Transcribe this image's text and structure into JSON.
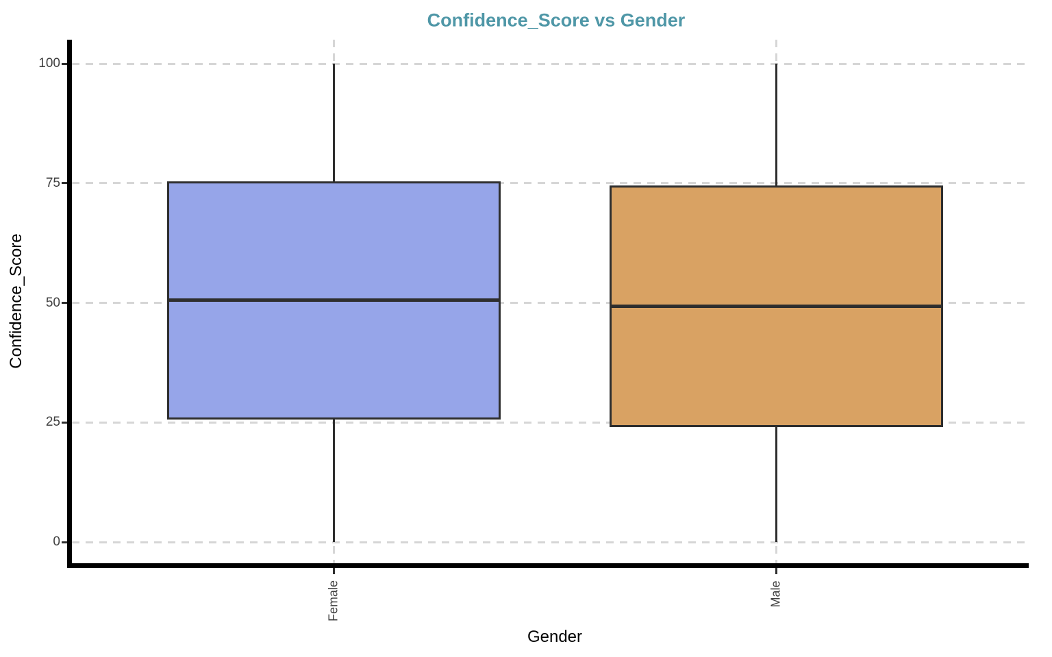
{
  "chart_data": {
    "type": "boxplot",
    "title": "Confidence_Score vs Gender",
    "xlabel": "Gender",
    "ylabel": "Confidence_Score",
    "categories": [
      "Female",
      "Male"
    ],
    "y_ticks": [
      0,
      25,
      50,
      75,
      100
    ],
    "ylim": [
      0,
      100
    ],
    "grid": "dashed light-gray horizontal lines at ticks and vertical lines at category centers",
    "legend": "none",
    "series": [
      {
        "name": "Female",
        "min": 0,
        "q1": 25.6,
        "median": 50.6,
        "q3": 75.4,
        "max": 100,
        "fill_color": "#96A5E9"
      },
      {
        "name": "Male",
        "min": 0,
        "q1": 24.0,
        "median": 49.3,
        "q3": 74.5,
        "max": 100,
        "fill_color": "#D9A263"
      }
    ],
    "colors": {
      "title": "#4F97A7",
      "axis_text": "#404040",
      "axis_title_text": "#000000",
      "gridline": "#D6D6D6",
      "box_border": "#2E2E2E",
      "axis_line": "#000000"
    }
  }
}
